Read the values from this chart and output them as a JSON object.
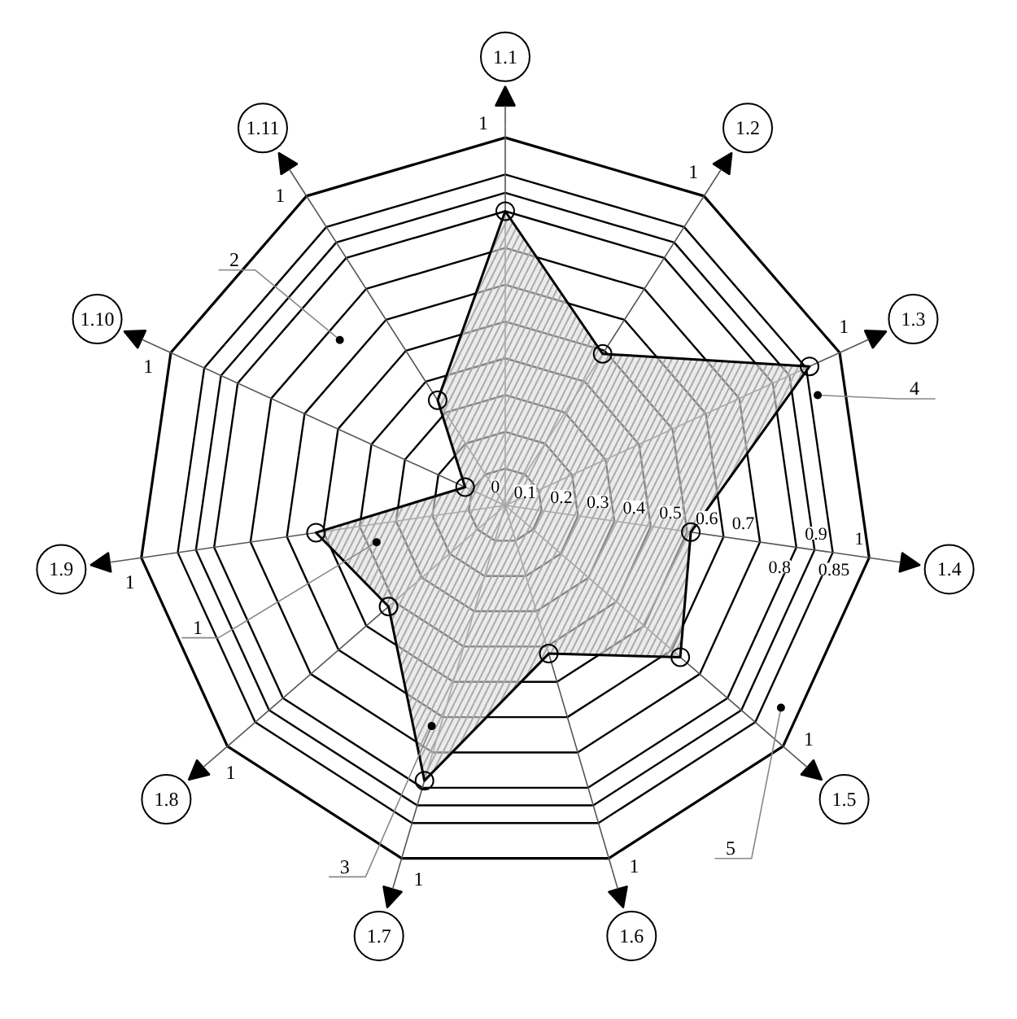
{
  "chart_data": {
    "type": "radar",
    "categories": [
      "1.1",
      "1.2",
      "1.3",
      "1.4",
      "1.5",
      "1.6",
      "1.7",
      "1.8",
      "1.9",
      "1.10",
      "1.11"
    ],
    "series": [
      {
        "color": "#000000",
        "values": [
          0.8,
          0.49,
          0.91,
          0.51,
          0.63,
          0.42,
          0.78,
          0.42,
          0.52,
          0.12,
          0.34
        ]
      }
    ],
    "ylim": [
      0,
      1
    ],
    "yticks": [
      0,
      0.1,
      0.2,
      0.3,
      0.4,
      0.5,
      0.6,
      0.7,
      0.8,
      0.85,
      0.9,
      1
    ],
    "marker": "circle",
    "annotations": [
      "1",
      "2",
      "3",
      "4",
      "5"
    ]
  }
}
